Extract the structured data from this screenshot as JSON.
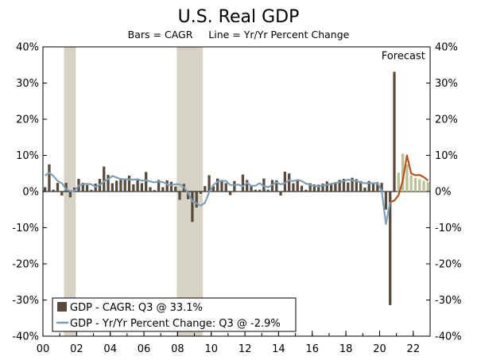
{
  "chart_data": {
    "type": "bar",
    "title": "U.S. Real GDP",
    "subtitle": "Bars = CAGR     Line = Yr/Yr Percent Change",
    "annotation": "Forecast",
    "ylim": [
      -40,
      40
    ],
    "yticks_left": [
      "40%",
      "30%",
      "20%",
      "10%",
      "0%",
      "-10%",
      "-20%",
      "-30%",
      "-40%"
    ],
    "yticks_right": [
      "40%",
      "30%",
      "20%",
      "10%",
      "0%",
      "-10%",
      "-20%",
      "-30%",
      "-40%"
    ],
    "ytick_values": [
      40,
      30,
      20,
      10,
      0,
      -10,
      -20,
      -30,
      -40
    ],
    "xticks": [
      "00",
      "02",
      "04",
      "06",
      "08",
      "10",
      "12",
      "14",
      "16",
      "18",
      "20",
      "22"
    ],
    "xtick_years": [
      2000,
      2002,
      2004,
      2006,
      2008,
      2010,
      2012,
      2014,
      2016,
      2018,
      2020,
      2022
    ],
    "x_range": [
      2000.0,
      2023.0
    ],
    "recessions": [
      [
        2001.25,
        2001.95
      ],
      [
        2007.95,
        2009.5
      ]
    ],
    "forecast_start": 2020.75,
    "colors": {
      "bar": "#5a4a3c",
      "forecast_bar": "#b9c295",
      "line": "#7f9fb8",
      "forecast_line": "#b5531a",
      "recession": "#d6d3c4"
    },
    "series": [
      {
        "name": "GDP - CAGR: Q3 @ 33.1%",
        "type": "bar",
        "values": [
          1.2,
          7.5,
          0.5,
          2.4,
          -1.1,
          2.4,
          -1.6,
          1.1,
          3.5,
          2.4,
          1.8,
          0.5,
          2.2,
          3.5,
          6.9,
          4.6,
          2.3,
          3.0,
          3.7,
          3.5,
          4.4,
          2.0,
          3.2,
          2.3,
          5.4,
          1.2,
          0.4,
          3.2,
          1.2,
          3.1,
          2.7,
          1.4,
          -2.3,
          2.1,
          -2.1,
          -8.4,
          -4.4,
          -0.6,
          1.5,
          4.5,
          1.5,
          3.6,
          3.0,
          2.3,
          -1.0,
          2.9,
          -0.1,
          4.7,
          3.2,
          1.7,
          0.5,
          0.5,
          3.6,
          0.5,
          3.2,
          3.1,
          -1.1,
          5.5,
          5.0,
          2.3,
          3.2,
          1.6,
          0.5,
          2.3,
          2.0,
          1.9,
          2.2,
          2.8,
          2.3,
          2.2,
          3.2,
          3.5,
          2.5,
          3.8,
          3.4,
          2.9,
          1.1,
          2.9,
          2.1,
          2.6,
          2.4,
          -5.0,
          -31.4,
          33.1
        ],
        "forecast_values": [
          5.2,
          10.5,
          7.5,
          4.5,
          3.8,
          3.4,
          3.0,
          2.6
        ]
      },
      {
        "name": "GDP - Yr/Yr Percent Change: Q3 @ -2.9%",
        "type": "line",
        "values": [
          4.4,
          5.2,
          4.3,
          2.9,
          2.3,
          0.6,
          0.1,
          0.2,
          1.6,
          2.0,
          2.1,
          2.0,
          1.3,
          1.8,
          2.8,
          3.4,
          4.3,
          3.9,
          3.4,
          3.4,
          3.3,
          3.3,
          3.4,
          3.0,
          3.1,
          2.8,
          2.5,
          2.8,
          2.6,
          2.0,
          1.8,
          2.0,
          2.0,
          1.2,
          -0.4,
          -2.7,
          -3.3,
          -3.9,
          -3.1,
          -0.2,
          1.8,
          2.7,
          3.0,
          2.9,
          1.8,
          1.8,
          1.9,
          1.4,
          2.4,
          1.6,
          1.6,
          2.3,
          1.5,
          1.2,
          1.9,
          2.5,
          2.0,
          2.3,
          3.1,
          2.9,
          3.2,
          2.9,
          2.2,
          1.9,
          1.6,
          1.4,
          1.7,
          1.9,
          2.1,
          2.4,
          2.6,
          2.9,
          3.3,
          3.1,
          2.9,
          2.5,
          2.3,
          2.3,
          2.3,
          2.3,
          0.3,
          -9.0,
          -2.9
        ],
        "forecast_values": [
          -2.9,
          -2.5,
          -1.0,
          3.0,
          10.0,
          5.0,
          4.5,
          4.6,
          4.0,
          3.0
        ]
      }
    ],
    "legend": [
      {
        "label": "GDP - CAGR: Q3 @ 33.1%"
      },
      {
        "label": "GDP - Yr/Yr Percent Change: Q3 @ -2.9%"
      }
    ],
    "legend_position": "bottom-left"
  }
}
